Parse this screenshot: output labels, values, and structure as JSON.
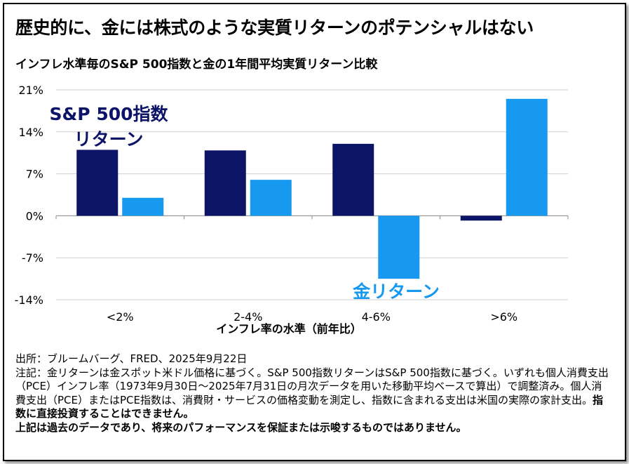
{
  "title": "歴史的に、金には株式のような実質リターンのポテンシャルはない",
  "subtitle": "インフレ水準毎のS&P 500指数と金の1年間平均実質リターン比較",
  "colors": {
    "sp500": "#0b1467",
    "gold": "#1799ef",
    "grid": "#cfcfcf"
  },
  "chart_data": {
    "type": "bar",
    "categories": [
      "<2%",
      "2-4%",
      "4-6%",
      ">6%"
    ],
    "series": [
      {
        "name": "S&P 500指数リターン",
        "values": [
          11.0,
          10.9,
          12.0,
          -0.8
        ]
      },
      {
        "name": "金リターン",
        "values": [
          3.0,
          6.0,
          -10.5,
          19.5
        ]
      }
    ],
    "ylim": [
      -14,
      21
    ],
    "yticks": [
      21,
      14,
      7,
      0,
      -7,
      -14
    ],
    "ytick_labels": [
      "21%",
      "14%",
      "7%",
      "0%",
      "-7%",
      "-14%"
    ],
    "xlabel": "インフレ率の水準（前年比）",
    "ylabel": "",
    "grid": true,
    "annotations": {
      "sp500_line1": "S&P 500指数",
      "sp500_line2": "リターン",
      "gold": "金リターン"
    }
  },
  "notes": {
    "source": "出所：ブルームバーグ、FRED、2025年9月22日",
    "body": "注記：金リターンは金スポット米ドル価格に基づく。S&P 500指数リターンはS&P 500指数に基づく。いずれも個人消費支出（PCE）インフレ率（1973年9月30日～2025年7月31日の月次データを用いた移動平均ベースで算出）で調整済み。個人消費支出（PCE）またはPCE指数は、消費財・サービスの価格変動を測定し、指数に含まれる支出は米国の実際の家計支出。",
    "bold1": "指数に直接投資することはできません。",
    "bold2": "上記は過去のデータであり、将来のパフォーマンスを保証または示唆するものではありません。"
  }
}
